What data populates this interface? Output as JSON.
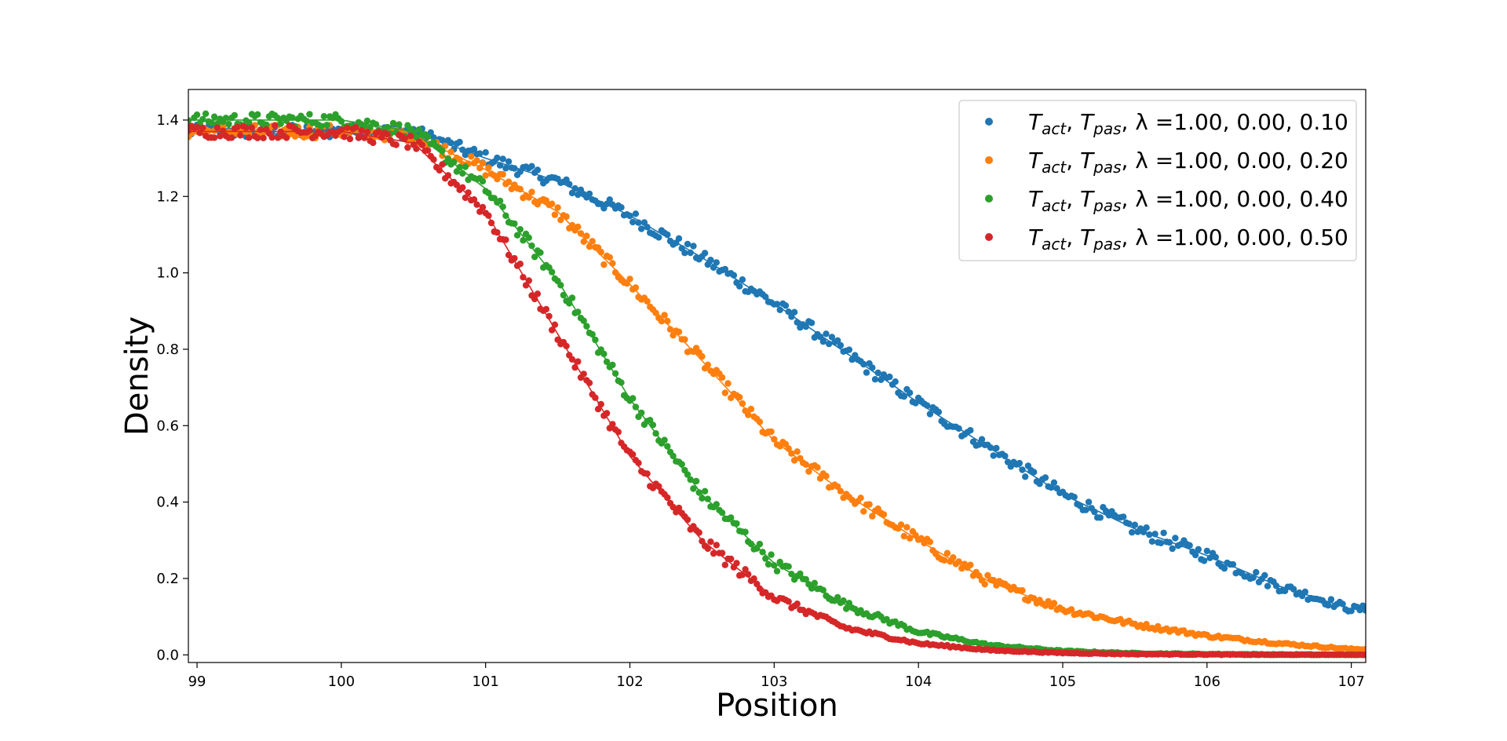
{
  "chart_data": {
    "type": "scatter",
    "title": "",
    "xlabel": "Position",
    "ylabel": "Density",
    "xlim": [
      98.94,
      107.1
    ],
    "ylim": [
      -0.02,
      1.48
    ],
    "xticks": [
      "99",
      "100",
      "101",
      "102",
      "103",
      "104",
      "105",
      "106",
      "107"
    ],
    "xtick_values": [
      99,
      100,
      101,
      102,
      103,
      104,
      105,
      106,
      107
    ],
    "yticks": [
      "0.0",
      "0.2",
      "0.4",
      "0.6",
      "0.8",
      "1.0",
      "1.2",
      "1.4"
    ],
    "ytick_values": [
      0.0,
      0.2,
      0.4,
      0.6,
      0.8,
      1.0,
      1.2,
      1.4
    ],
    "grid": false,
    "legend_position": "top-right",
    "series": [
      {
        "name": "Tact, Tpas, λ =1.00, 0.00, 0.10",
        "label_parts": {
          "prefix": "T",
          "sub1": "act",
          "mid": ", T",
          "sub2": "pas",
          "suffix": ", λ =1.00, 0.00, 0.10"
        },
        "color": "#1f77b4",
        "points": [
          [
            99.0,
            1.37
          ],
          [
            99.5,
            1.37
          ],
          [
            100.0,
            1.37
          ],
          [
            100.5,
            1.37
          ],
          [
            101.0,
            1.3
          ],
          [
            101.5,
            1.24
          ],
          [
            102.0,
            1.15
          ],
          [
            102.5,
            1.04
          ],
          [
            103.0,
            0.92
          ],
          [
            103.5,
            0.79
          ],
          [
            104.0,
            0.66
          ],
          [
            104.5,
            0.54
          ],
          [
            105.0,
            0.42
          ],
          [
            105.5,
            0.33
          ],
          [
            106.0,
            0.26
          ],
          [
            106.5,
            0.18
          ],
          [
            107.0,
            0.12
          ]
        ]
      },
      {
        "name": "Tact, Tpas, λ =1.00, 0.00, 0.20",
        "label_parts": {
          "prefix": "T",
          "sub1": "act",
          "mid": ", T",
          "sub2": "pas",
          "suffix": ", λ =1.00, 0.00, 0.20"
        },
        "color": "#ff7f0e",
        "points": [
          [
            99.0,
            1.37
          ],
          [
            99.5,
            1.37
          ],
          [
            100.0,
            1.37
          ],
          [
            100.5,
            1.36
          ],
          [
            101.0,
            1.27
          ],
          [
            101.5,
            1.16
          ],
          [
            102.0,
            0.97
          ],
          [
            102.5,
            0.77
          ],
          [
            103.0,
            0.56
          ],
          [
            103.5,
            0.42
          ],
          [
            104.0,
            0.3
          ],
          [
            104.5,
            0.19
          ],
          [
            105.0,
            0.12
          ],
          [
            105.5,
            0.08
          ],
          [
            106.0,
            0.05
          ],
          [
            106.5,
            0.03
          ],
          [
            107.0,
            0.015
          ]
        ]
      },
      {
        "name": "Tact, Tpas, λ =1.00, 0.00, 0.40",
        "label_parts": {
          "prefix": "T",
          "sub1": "act",
          "mid": ", T",
          "sub2": "pas",
          "suffix": ", λ =1.00, 0.00, 0.40"
        },
        "color": "#2ca02c",
        "points": [
          [
            99.0,
            1.4
          ],
          [
            99.5,
            1.4
          ],
          [
            100.0,
            1.4
          ],
          [
            100.5,
            1.37
          ],
          [
            101.0,
            1.22
          ],
          [
            101.5,
            0.98
          ],
          [
            102.0,
            0.67
          ],
          [
            102.5,
            0.42
          ],
          [
            103.0,
            0.24
          ],
          [
            103.5,
            0.13
          ],
          [
            104.0,
            0.06
          ],
          [
            104.5,
            0.025
          ],
          [
            105.0,
            0.01
          ],
          [
            105.5,
            0.004
          ],
          [
            106.0,
            0.002
          ],
          [
            106.5,
            0.001
          ],
          [
            107.0,
            0.0
          ]
        ]
      },
      {
        "name": "Tact, Tpas, λ =1.00, 0.00, 0.50",
        "label_parts": {
          "prefix": "T",
          "sub1": "act",
          "mid": ", T",
          "sub2": "pas",
          "suffix": ", λ =1.00, 0.00, 0.50"
        },
        "color": "#d62728",
        "points": [
          [
            99.0,
            1.37
          ],
          [
            99.5,
            1.37
          ],
          [
            100.0,
            1.37
          ],
          [
            100.5,
            1.34
          ],
          [
            101.0,
            1.16
          ],
          [
            101.5,
            0.84
          ],
          [
            102.0,
            0.52
          ],
          [
            102.5,
            0.3
          ],
          [
            103.0,
            0.15
          ],
          [
            103.5,
            0.07
          ],
          [
            104.0,
            0.03
          ],
          [
            104.5,
            0.012
          ],
          [
            105.0,
            0.005
          ],
          [
            105.5,
            0.002
          ],
          [
            106.0,
            0.001
          ],
          [
            106.5,
            0.0
          ],
          [
            107.0,
            0.0
          ]
        ]
      }
    ]
  }
}
